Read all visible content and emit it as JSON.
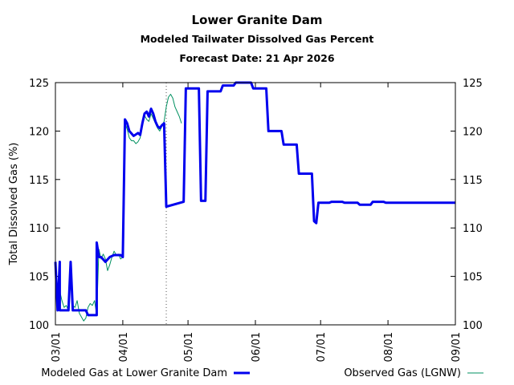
{
  "chart_data": {
    "type": "line",
    "title": "Lower Granite Dam",
    "subtitle": "Modeled Tailwater Dissolved Gas Percent",
    "forecast_label": "Forecast Date: 21 Apr 2026",
    "ylabel": "Total Dissolved Gas (%)",
    "xlabel": "",
    "x_range": [
      "2026-03-01",
      "2026-09-01"
    ],
    "ylim": [
      100,
      125
    ],
    "yticks": [
      100,
      105,
      110,
      115,
      120,
      125
    ],
    "xticks": [
      {
        "label": "03/01",
        "date": "2026-03-01"
      },
      {
        "label": "04/01",
        "date": "2026-04-01"
      },
      {
        "label": "05/01",
        "date": "2026-05-01"
      },
      {
        "label": "06/01",
        "date": "2026-06-01"
      },
      {
        "label": "07/01",
        "date": "2026-07-01"
      },
      {
        "label": "08/01",
        "date": "2026-08-01"
      },
      {
        "label": "09/01",
        "date": "2026-09-01"
      }
    ],
    "forecast_date": "2026-04-21",
    "legend": "bottom",
    "series": [
      {
        "name": "Modeled Gas at Lower Granite Dam",
        "color": "#0000ee",
        "points": [
          [
            "2026-03-01",
            106.5
          ],
          [
            "2026-03-02",
            101.5
          ],
          [
            "2026-03-03",
            106.5
          ],
          [
            "2026-03-03",
            101.5
          ],
          [
            "2026-03-07",
            101.5
          ],
          [
            "2026-03-08",
            106.5
          ],
          [
            "2026-03-09",
            101.5
          ],
          [
            "2026-03-15",
            101.5
          ],
          [
            "2026-03-16",
            101.0
          ],
          [
            "2026-03-19",
            101.0
          ],
          [
            "2026-03-20",
            101.0
          ],
          [
            "2026-03-20",
            108.5
          ],
          [
            "2026-03-21",
            107.0
          ],
          [
            "2026-03-22",
            107.0
          ],
          [
            "2026-03-24",
            106.5
          ],
          [
            "2026-03-26",
            107.0
          ],
          [
            "2026-03-28",
            107.2
          ],
          [
            "2026-03-31",
            107.2
          ],
          [
            "2026-04-01",
            107.0
          ],
          [
            "2026-04-02",
            121.2
          ],
          [
            "2026-04-03",
            120.8
          ],
          [
            "2026-04-04",
            120.0
          ],
          [
            "2026-04-06",
            119.5
          ],
          [
            "2026-04-08",
            119.8
          ],
          [
            "2026-04-09",
            119.6
          ],
          [
            "2026-04-10",
            120.8
          ],
          [
            "2026-04-11",
            121.8
          ],
          [
            "2026-04-12",
            122.0
          ],
          [
            "2026-04-13",
            121.5
          ],
          [
            "2026-04-14",
            122.3
          ],
          [
            "2026-04-15",
            121.8
          ],
          [
            "2026-04-16",
            121.0
          ],
          [
            "2026-04-17",
            120.5
          ],
          [
            "2026-04-18",
            120.3
          ],
          [
            "2026-04-19",
            120.6
          ],
          [
            "2026-04-20",
            120.8
          ],
          [
            "2026-04-21",
            112.2
          ],
          [
            "2026-04-29",
            112.7
          ],
          [
            "2026-04-30",
            124.4
          ],
          [
            "2026-05-06",
            124.4
          ],
          [
            "2026-05-07",
            112.8
          ],
          [
            "2026-05-09",
            112.8
          ],
          [
            "2026-05-10",
            124.1
          ],
          [
            "2026-05-16",
            124.1
          ],
          [
            "2026-05-17",
            124.7
          ],
          [
            "2026-05-22",
            124.7
          ],
          [
            "2026-05-23",
            125.0
          ],
          [
            "2026-05-30",
            125.0
          ],
          [
            "2026-05-31",
            124.4
          ],
          [
            "2026-06-06",
            124.4
          ],
          [
            "2026-06-07",
            120.0
          ],
          [
            "2026-06-13",
            120.0
          ],
          [
            "2026-06-14",
            118.6
          ],
          [
            "2026-06-20",
            118.6
          ],
          [
            "2026-06-21",
            115.6
          ],
          [
            "2026-06-27",
            115.6
          ],
          [
            "2026-06-28",
            110.7
          ],
          [
            "2026-06-29",
            110.5
          ],
          [
            "2026-06-30",
            112.6
          ],
          [
            "2026-07-05",
            112.6
          ],
          [
            "2026-07-06",
            112.7
          ],
          [
            "2026-07-11",
            112.7
          ],
          [
            "2026-07-12",
            112.6
          ],
          [
            "2026-07-18",
            112.6
          ],
          [
            "2026-07-19",
            112.4
          ],
          [
            "2026-07-24",
            112.4
          ],
          [
            "2026-07-25",
            112.7
          ],
          [
            "2026-07-30",
            112.7
          ],
          [
            "2026-07-31",
            112.6
          ],
          [
            "2026-09-01",
            112.6
          ]
        ]
      },
      {
        "name": "Observed Gas (LGNW)",
        "color": "#009060",
        "points": [
          [
            "2026-03-01",
            104.5
          ],
          [
            "2026-03-02",
            102.0
          ],
          [
            "2026-03-03",
            103.5
          ],
          [
            "2026-03-04",
            102.5
          ],
          [
            "2026-03-05",
            101.8
          ],
          [
            "2026-03-06",
            102.0
          ],
          [
            "2026-03-07",
            101.5
          ],
          [
            "2026-03-08",
            104.5
          ],
          [
            "2026-03-09",
            102.0
          ],
          [
            "2026-03-10",
            101.8
          ],
          [
            "2026-03-11",
            102.5
          ],
          [
            "2026-03-12",
            101.2
          ],
          [
            "2026-03-13",
            100.8
          ],
          [
            "2026-03-14",
            100.4
          ],
          [
            "2026-03-15",
            100.7
          ],
          [
            "2026-03-16",
            101.8
          ],
          [
            "2026-03-17",
            102.2
          ],
          [
            "2026-03-18",
            102.0
          ],
          [
            "2026-03-19",
            102.5
          ],
          [
            "2026-03-20",
            101.0
          ],
          [
            "2026-03-21",
            107.8
          ],
          [
            "2026-03-22",
            106.8
          ],
          [
            "2026-03-23",
            107.3
          ],
          [
            "2026-03-24",
            106.8
          ],
          [
            "2026-03-25",
            105.6
          ],
          [
            "2026-03-26",
            106.2
          ],
          [
            "2026-03-27",
            107.0
          ],
          [
            "2026-03-28",
            107.6
          ],
          [
            "2026-03-29",
            107.2
          ],
          [
            "2026-03-30",
            107.3
          ],
          [
            "2026-03-31",
            106.8
          ],
          [
            "2026-04-01",
            107.0
          ],
          [
            "2026-04-02",
            120.8
          ],
          [
            "2026-04-03",
            120.2
          ],
          [
            "2026-04-04",
            119.3
          ],
          [
            "2026-04-05",
            119.0
          ],
          [
            "2026-04-06",
            119.0
          ],
          [
            "2026-04-07",
            118.7
          ],
          [
            "2026-04-08",
            118.9
          ],
          [
            "2026-04-09",
            119.3
          ],
          [
            "2026-04-10",
            120.6
          ],
          [
            "2026-04-11",
            121.6
          ],
          [
            "2026-04-12",
            121.2
          ],
          [
            "2026-04-13",
            121.0
          ],
          [
            "2026-04-14",
            121.8
          ],
          [
            "2026-04-15",
            121.3
          ],
          [
            "2026-04-16",
            120.8
          ],
          [
            "2026-04-17",
            120.3
          ],
          [
            "2026-04-18",
            120.0
          ],
          [
            "2026-04-19",
            120.5
          ],
          [
            "2026-04-20",
            121.0
          ],
          [
            "2026-04-21",
            122.5
          ],
          [
            "2026-04-22",
            123.5
          ],
          [
            "2026-04-23",
            123.8
          ],
          [
            "2026-04-24",
            123.4
          ],
          [
            "2026-04-25",
            122.5
          ],
          [
            "2026-04-26",
            122.0
          ],
          [
            "2026-04-27",
            121.5
          ],
          [
            "2026-04-28",
            120.8
          ]
        ]
      }
    ]
  }
}
